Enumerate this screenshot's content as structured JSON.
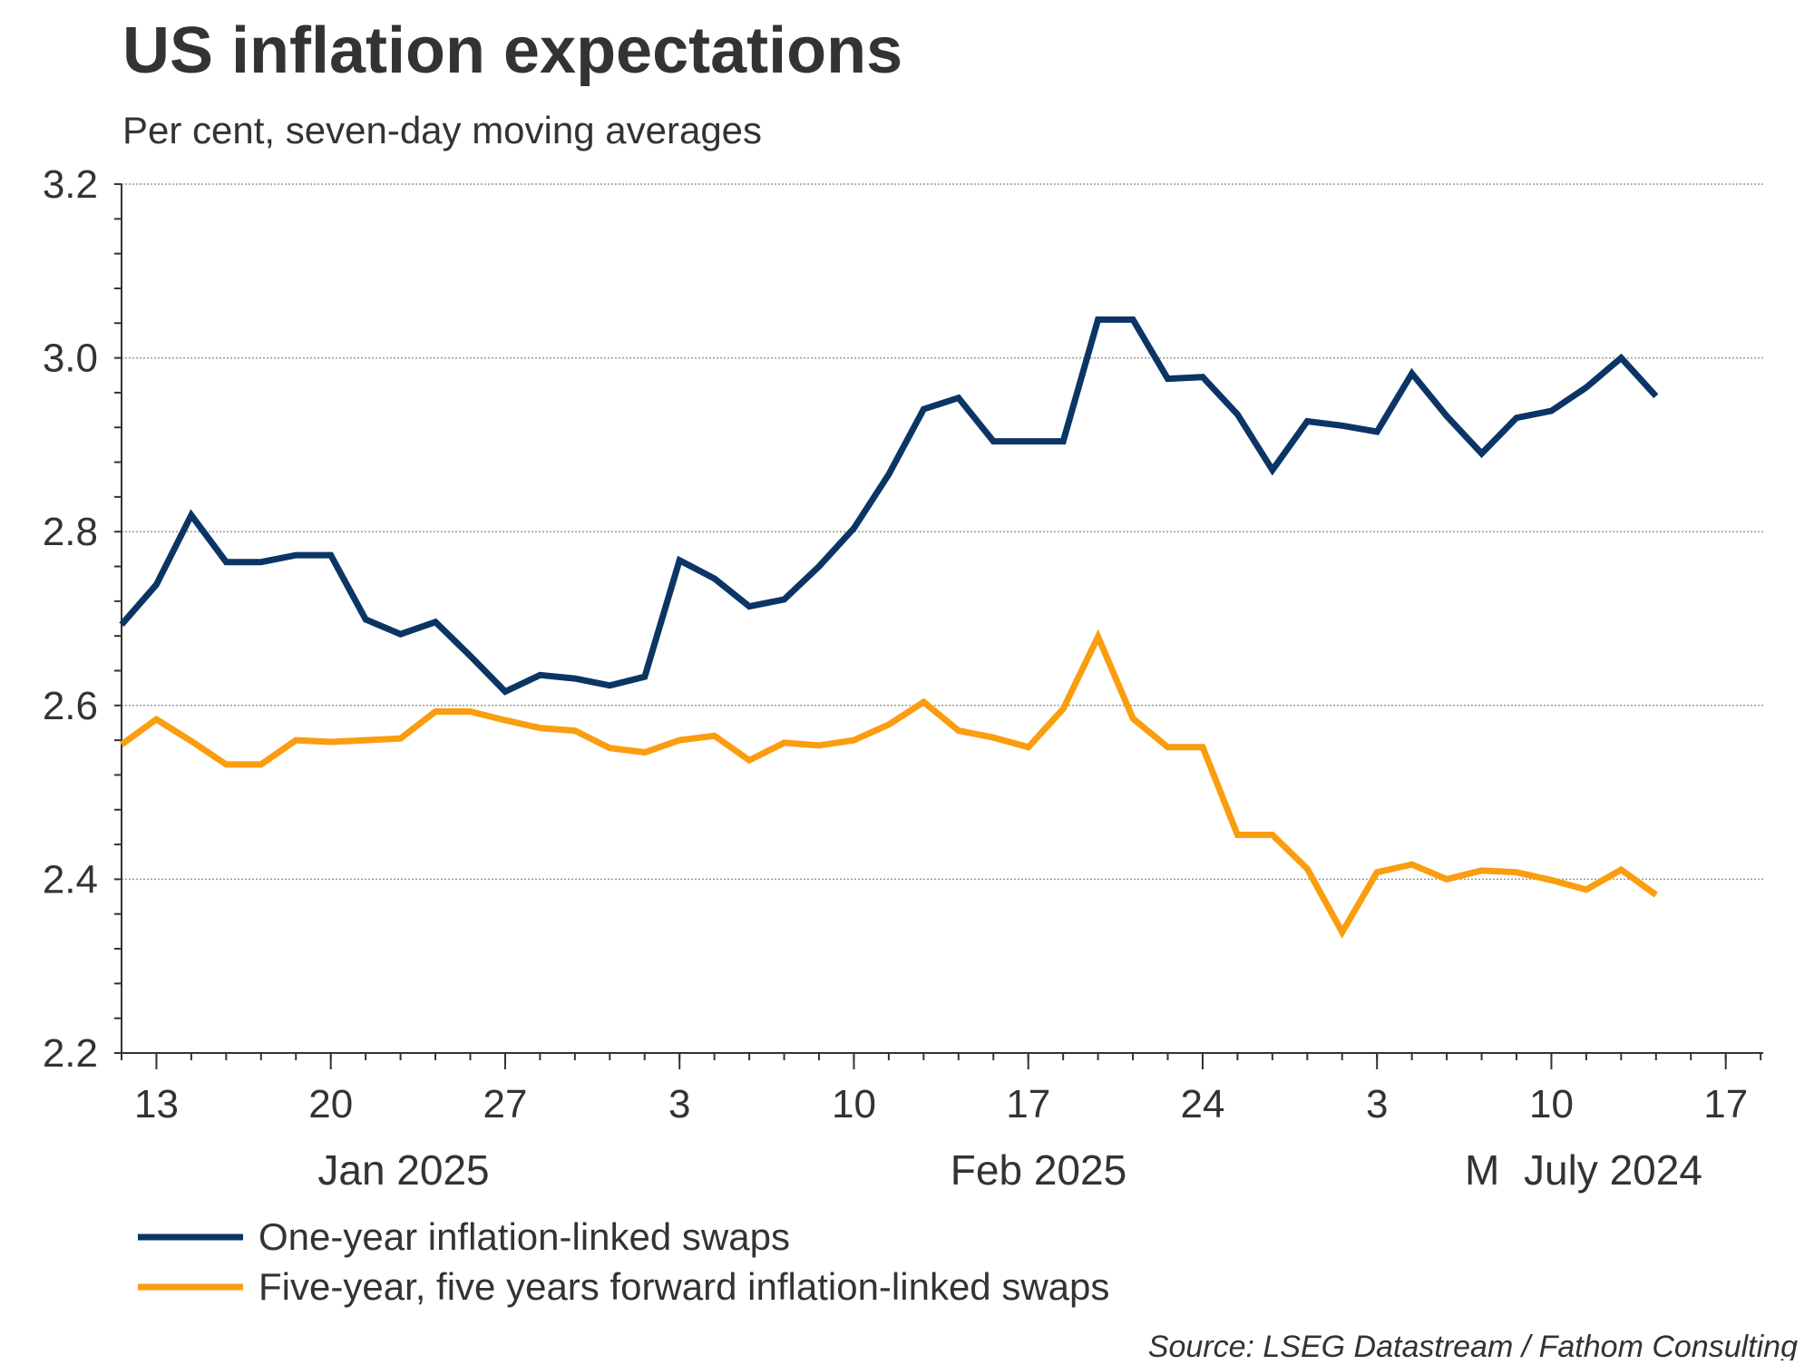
{
  "chart_data": {
    "type": "line",
    "title": "US inflation expectations",
    "subtitle": "Per cent, seven-day moving averages",
    "xlabel": "",
    "ylabel": "",
    "ylim": [
      2.2,
      3.2
    ],
    "y_ticks": [
      "2.2",
      "2.4",
      "2.6",
      "2.8",
      "3.0",
      "3.2"
    ],
    "y_tick_values": [
      2.2,
      2.4,
      2.6,
      2.8,
      3.0,
      3.2
    ],
    "x_note": "x = business-day index starting Fri 10 Jan 2025",
    "xlim": [
      0,
      47.1
    ],
    "x_ticks": [
      {
        "index": 1,
        "label": "13"
      },
      {
        "index": 6,
        "label": "20"
      },
      {
        "index": 11,
        "label": "27"
      },
      {
        "index": 16,
        "label": "3"
      },
      {
        "index": 21,
        "label": "10"
      },
      {
        "index": 26,
        "label": "17"
      },
      {
        "index": 31,
        "label": "24"
      },
      {
        "index": 36,
        "label": "3"
      },
      {
        "index": 41,
        "label": "10"
      },
      {
        "index": 46,
        "label": "17"
      }
    ],
    "month_labels": [
      "Jan 2025",
      "Feb 2025",
      "M",
      "July 2024"
    ],
    "grid": true,
    "legend_position": "bottom-left",
    "series": [
      {
        "name": "One-year inflation-linked swaps",
        "color": "#0b3565",
        "values": [
          2.693,
          2.739,
          2.819,
          2.765,
          2.765,
          2.773,
          2.773,
          2.699,
          2.682,
          2.696,
          2.657,
          2.616,
          2.635,
          2.631,
          2.623,
          2.633,
          2.767,
          2.746,
          2.714,
          2.722,
          2.76,
          2.804,
          2.866,
          2.941,
          2.954,
          2.904,
          2.904,
          2.904,
          3.044,
          3.044,
          2.976,
          2.978,
          2.935,
          2.871,
          2.927,
          2.922,
          2.915,
          2.982,
          2.933,
          2.89,
          2.931,
          2.939,
          2.966,
          3.0,
          2.956
        ]
      },
      {
        "name": "Five-year, five years forward inflation-linked swaps",
        "color": "#fa9d0f",
        "values": [
          2.555,
          2.584,
          2.559,
          2.532,
          2.532,
          2.56,
          2.558,
          2.56,
          2.562,
          2.593,
          2.593,
          2.583,
          2.574,
          2.571,
          2.551,
          2.546,
          2.56,
          2.565,
          2.537,
          2.557,
          2.554,
          2.56,
          2.578,
          2.604,
          2.571,
          2.563,
          2.552,
          2.596,
          2.679,
          2.585,
          2.552,
          2.552,
          2.451,
          2.451,
          2.412,
          2.339,
          2.408,
          2.417,
          2.4,
          2.41,
          2.408,
          2.399,
          2.388,
          2.411,
          2.382
        ]
      }
    ],
    "source": "Source: LSEG Datastream / Fathom Consulting"
  }
}
